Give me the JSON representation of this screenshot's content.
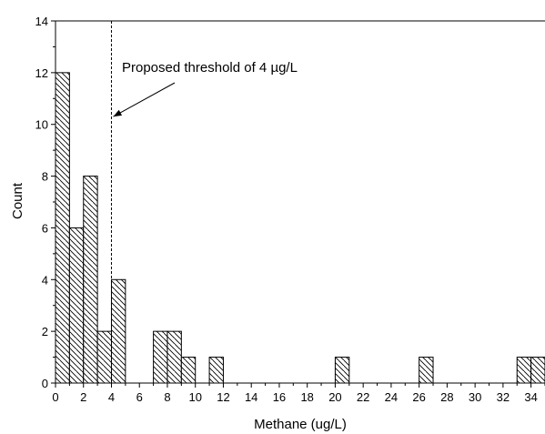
{
  "chart_data": {
    "type": "bar",
    "bin_width": 1,
    "bins": [
      {
        "x": 0,
        "count": 12
      },
      {
        "x": 1,
        "count": 6
      },
      {
        "x": 2,
        "count": 8
      },
      {
        "x": 3,
        "count": 2
      },
      {
        "x": 4,
        "count": 4
      },
      {
        "x": 7,
        "count": 2
      },
      {
        "x": 8,
        "count": 2
      },
      {
        "x": 9,
        "count": 1
      },
      {
        "x": 11,
        "count": 1
      },
      {
        "x": 20,
        "count": 1
      },
      {
        "x": 26,
        "count": 1
      },
      {
        "x": 33,
        "count": 1
      },
      {
        "x": 34,
        "count": 1
      }
    ],
    "xlabel": "Methane (ug/L)",
    "ylabel": "Count",
    "xlim": [
      0,
      35
    ],
    "ylim": [
      0,
      14
    ],
    "x_ticks": [
      0,
      2,
      4,
      6,
      8,
      10,
      12,
      14,
      16,
      18,
      20,
      22,
      24,
      26,
      28,
      30,
      32,
      34
    ],
    "y_ticks": [
      0,
      2,
      4,
      6,
      8,
      10,
      12,
      14
    ],
    "bar_fill": "hatched",
    "threshold": {
      "x": 4,
      "style": "dashed"
    },
    "annotation": {
      "text": "Proposed threshold of 4 µg/L",
      "arrow_to": {
        "x": 4,
        "y": 10.3
      }
    }
  }
}
